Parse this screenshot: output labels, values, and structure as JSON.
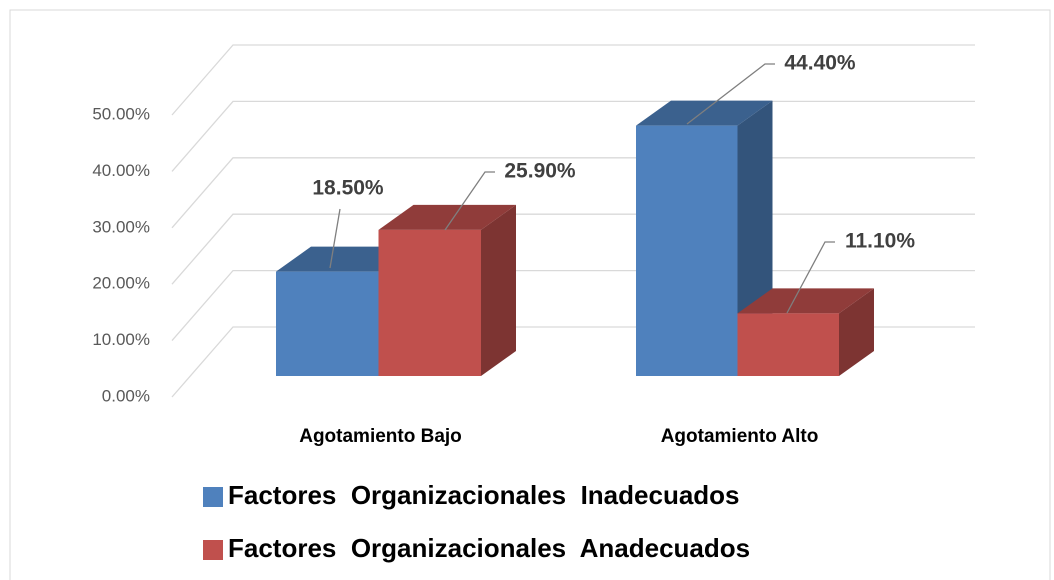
{
  "chart_data": {
    "type": "bar3d",
    "categories": [
      "Agotamiento Bajo",
      "Agotamiento Alto"
    ],
    "series": [
      {
        "name": "Factores  Organizacionales  Inadecuados",
        "color": "#4f81bd",
        "values": [
          18.5,
          44.4
        ],
        "value_labels": [
          "18.50%",
          "44.40%"
        ]
      },
      {
        "name": "Factores  Organizacionales  Anadecuados",
        "color": "#c0504d",
        "values": [
          25.9,
          11.1
        ],
        "value_labels": [
          "25.90%",
          "11.10%"
        ]
      }
    ],
    "ylim": [
      0,
      50
    ],
    "yticks": [
      {
        "value": 0,
        "label": "0.00%"
      },
      {
        "value": 10,
        "label": "10.00%"
      },
      {
        "value": 20,
        "label": "20.00%"
      },
      {
        "value": 30,
        "label": "30.00%"
      },
      {
        "value": 40,
        "label": "40.00%"
      },
      {
        "value": 50,
        "label": "50.00%"
      }
    ],
    "grid": true
  }
}
